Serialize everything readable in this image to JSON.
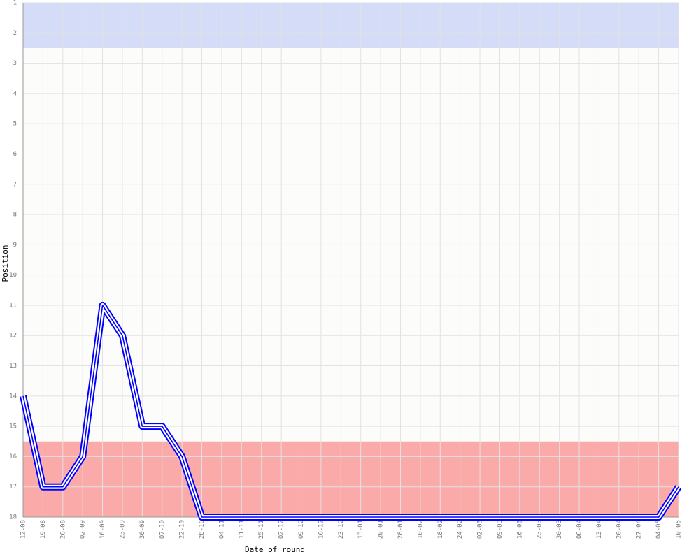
{
  "chart_data": {
    "type": "line",
    "x_label": "Date of round",
    "y_label": "Position",
    "categories": [
      "12-08",
      "19-08",
      "26-08",
      "02-09",
      "16-09",
      "23-09",
      "30-09",
      "07-10",
      "22-10",
      "28-10",
      "04-11",
      "11-11",
      "25-11",
      "02-12",
      "09-12",
      "16-12",
      "23-12",
      "13-01",
      "20-01",
      "28-01",
      "10-02",
      "18-02",
      "24-02",
      "02-03",
      "09-03",
      "16-03",
      "23-03",
      "30-03",
      "06-04",
      "13-04",
      "20-04",
      "27-04",
      "04-05",
      "10-05"
    ],
    "series": [
      {
        "color": "#0000ff",
        "values": [
          14,
          17,
          17,
          16,
          11,
          12,
          15,
          15,
          16,
          18,
          18,
          18,
          18,
          18,
          18,
          18,
          18,
          18,
          18,
          18,
          18,
          18,
          18,
          18,
          18,
          18,
          18,
          18,
          18,
          18,
          18,
          18,
          18,
          17
        ]
      }
    ],
    "ylim": [
      18,
      1
    ],
    "yticks": [
      1,
      2,
      3,
      4,
      5,
      6,
      7,
      8,
      9,
      10,
      11,
      12,
      13,
      14,
      15,
      16,
      17,
      18
    ],
    "grid": true,
    "zones": [
      {
        "from": 1,
        "to": 2.5,
        "color": "#d5dcf8"
      },
      {
        "from": 15.5,
        "to": 18,
        "color": "#fbaaaa"
      }
    ]
  }
}
